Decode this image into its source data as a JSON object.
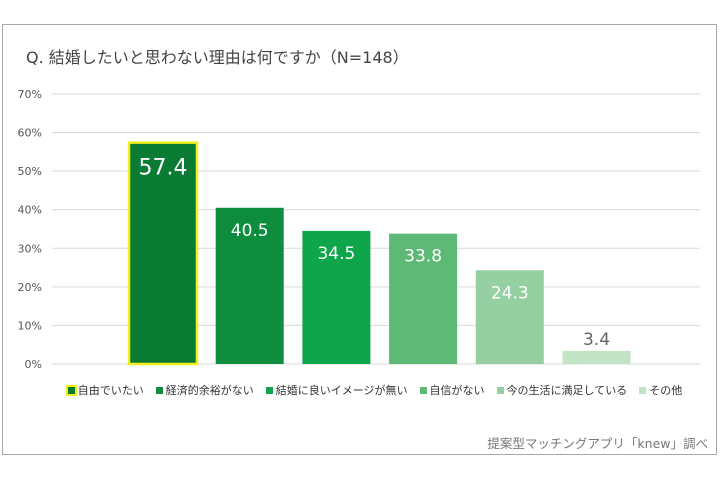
{
  "chart_data": {
    "type": "bar",
    "title": "Q. 結婚したいと思わない理由は何ですか（N=148）",
    "categories": [
      "自由でいたい",
      "経済的余裕がない",
      "結婚に良いイメージが無い",
      "自信がない",
      "今の生活に満足している",
      "その他"
    ],
    "values": [
      57.4,
      40.5,
      34.5,
      33.8,
      24.3,
      3.4
    ],
    "value_labels": [
      "57.4",
      "40.5",
      "34.5",
      "33.8",
      "24.3",
      "3.4"
    ],
    "colors": [
      "#0a7b33",
      "#0e8d3f",
      "#0fa54b",
      "#5db975",
      "#96cfa1",
      "#c3e3c7"
    ],
    "highlight_color": "#f2f020",
    "yticks": [
      "0%",
      "10%",
      "20%",
      "30%",
      "40%",
      "50%",
      "60%",
      "70%"
    ],
    "ylim": [
      0,
      70
    ],
    "grid": true,
    "legend": "bottom",
    "xlabel": "",
    "ylabel": ""
  },
  "source": "提案型マッチングアプリ「knew」調べ"
}
